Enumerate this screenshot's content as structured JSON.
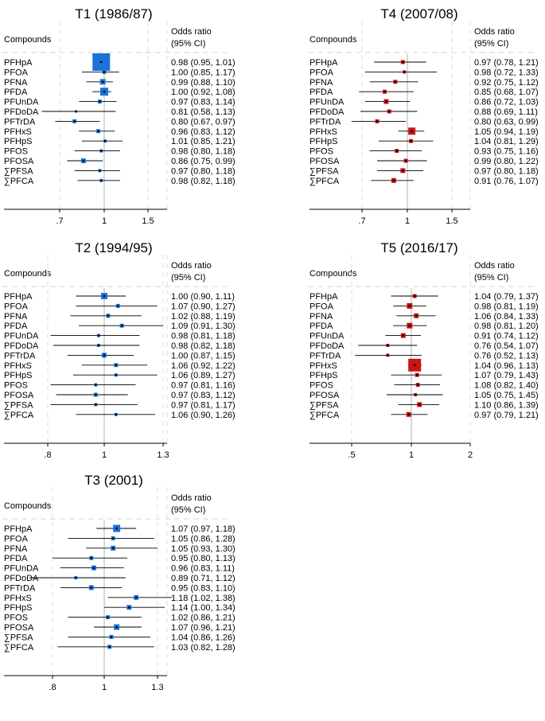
{
  "colors": {
    "blue": "#1a73d9",
    "red": "#c91414",
    "line": "#000000",
    "grid": "#dcdcdc",
    "text": "#000000"
  },
  "chart_data": [
    {
      "type": "forest",
      "title": "T1 (1986/87)",
      "color": "#1a73d9",
      "header": {
        "col1": "Compounds",
        "col2a": "Odds ratio",
        "col2b": "(95% CI)"
      },
      "xticks": [
        0.7,
        1,
        1.5
      ],
      "xtick_labels": [
        ".7",
        "1",
        "1.5"
      ],
      "xlim": [
        0.58,
        1.5
      ],
      "rows": [
        {
          "label": "PFHpA",
          "or": 0.98,
          "lo": 0.95,
          "hi": 1.01,
          "w": 22,
          "ci_text": "0.98 (0.95, 1.01)"
        },
        {
          "label": "PFOA",
          "or": 1.0,
          "lo": 0.85,
          "hi": 1.17,
          "w": 5,
          "ci_text": "1.00 (0.85, 1.17)"
        },
        {
          "label": "PFNA",
          "or": 0.99,
          "lo": 0.88,
          "hi": 1.1,
          "w": 7,
          "ci_text": "0.99 (0.88, 1.10)"
        },
        {
          "label": "PFDA",
          "or": 1.0,
          "lo": 0.92,
          "hi": 1.08,
          "w": 10,
          "ci_text": "1.00 (0.92, 1.08)"
        },
        {
          "label": "PFUnDA",
          "or": 0.97,
          "lo": 0.83,
          "hi": 1.14,
          "w": 5,
          "ci_text": "0.97 (0.83, 1.14)"
        },
        {
          "label": "PFDoDA",
          "or": 0.81,
          "lo": 0.58,
          "hi": 1.13,
          "w": 3,
          "ci_text": "0.81 (0.58, 1.13)"
        },
        {
          "label": "PFTrDA",
          "or": 0.8,
          "lo": 0.67,
          "hi": 0.97,
          "w": 5,
          "ci_text": "0.80 (0.67, 0.97)"
        },
        {
          "label": "PFHxS",
          "or": 0.96,
          "lo": 0.83,
          "hi": 1.12,
          "w": 5,
          "ci_text": "0.96 (0.83, 1.12)"
        },
        {
          "label": "PFHpS",
          "or": 1.01,
          "lo": 0.85,
          "hi": 1.21,
          "w": 4,
          "ci_text": "1.01 (0.85, 1.21)"
        },
        {
          "label": "PFOS",
          "or": 0.98,
          "lo": 0.8,
          "hi": 1.18,
          "w": 4,
          "ci_text": "0.98 (0.80, 1.18)"
        },
        {
          "label": "PFOSA",
          "or": 0.86,
          "lo": 0.75,
          "hi": 0.99,
          "w": 6,
          "ci_text": "0.86 (0.75, 0.99)"
        },
        {
          "label": "∑PFSA",
          "or": 0.97,
          "lo": 0.8,
          "hi": 1.18,
          "w": 4,
          "ci_text": "0.97 (0.80, 1.18)"
        },
        {
          "label": "∑PFCA",
          "or": 0.98,
          "lo": 0.82,
          "hi": 1.18,
          "w": 4,
          "ci_text": "0.98 (0.82, 1.18)"
        }
      ]
    },
    {
      "type": "forest",
      "title": "T4 (2007/08)",
      "color": "#c91414",
      "header": {
        "col1": "Compounds",
        "col2a": "Odds ratio",
        "col2b": "(95% CI)"
      },
      "xticks": [
        0.7,
        1,
        1.5
      ],
      "xtick_labels": [
        ".7",
        "1",
        "1.5"
      ],
      "xlim": [
        0.58,
        1.5
      ],
      "rows": [
        {
          "label": "PFHpA",
          "or": 0.97,
          "lo": 0.78,
          "hi": 1.21,
          "w": 5,
          "ci_text": "0.97 (0.78, 1.21)"
        },
        {
          "label": "PFOA",
          "or": 0.98,
          "lo": 0.72,
          "hi": 1.33,
          "w": 4,
          "ci_text": "0.98 (0.72, 1.33)"
        },
        {
          "label": "PFNA",
          "or": 0.92,
          "lo": 0.75,
          "hi": 1.12,
          "w": 5,
          "ci_text": "0.92 (0.75, 1.12)"
        },
        {
          "label": "PFDA",
          "or": 0.85,
          "lo": 0.68,
          "hi": 1.07,
          "w": 5,
          "ci_text": "0.85 (0.68, 1.07)"
        },
        {
          "label": "PFUnDA",
          "or": 0.86,
          "lo": 0.72,
          "hi": 1.03,
          "w": 6,
          "ci_text": "0.86 (0.72, 1.03)"
        },
        {
          "label": "PFDoDA",
          "or": 0.88,
          "lo": 0.69,
          "hi": 1.11,
          "w": 5,
          "ci_text": "0.88 (0.69, 1.11)"
        },
        {
          "label": "PFTrDA",
          "or": 0.8,
          "lo": 0.63,
          "hi": 0.99,
          "w": 5,
          "ci_text": "0.80 (0.63, 0.99)"
        },
        {
          "label": "PFHxS",
          "or": 1.05,
          "lo": 0.94,
          "hi": 1.19,
          "w": 9,
          "ci_text": "1.05 (0.94, 1.19)"
        },
        {
          "label": "PFHpS",
          "or": 1.04,
          "lo": 0.81,
          "hi": 1.29,
          "w": 5,
          "ci_text": "1.04 (0.81, 1.29)"
        },
        {
          "label": "PFOS",
          "or": 0.93,
          "lo": 0.75,
          "hi": 1.16,
          "w": 5,
          "ci_text": "0.93 (0.75, 1.16)"
        },
        {
          "label": "PFOSA",
          "or": 0.99,
          "lo": 0.8,
          "hi": 1.22,
          "w": 5,
          "ci_text": "0.99 (0.80, 1.22)"
        },
        {
          "label": "∑PFSA",
          "or": 0.97,
          "lo": 0.8,
          "hi": 1.18,
          "w": 6,
          "ci_text": "0.97 (0.80, 1.18)"
        },
        {
          "label": "∑PFCA",
          "or": 0.91,
          "lo": 0.76,
          "hi": 1.07,
          "w": 6,
          "ci_text": "0.91 (0.76, 1.07)"
        }
      ]
    },
    {
      "type": "forest",
      "title": "T2 (1994/95)",
      "color": "#1a73d9",
      "header": {
        "col1": "Compounds",
        "col2a": "Odds ratio",
        "col2b": "(95% CI)"
      },
      "xticks": [
        0.8,
        1,
        1.3
      ],
      "xtick_labels": [
        ".8",
        "1",
        "1.3"
      ],
      "xlim": [
        0.76,
        1.3
      ],
      "rows": [
        {
          "label": "PFHpA",
          "or": 1.0,
          "lo": 0.9,
          "hi": 1.11,
          "w": 8,
          "ci_text": "1.00 (0.90, 1.11)"
        },
        {
          "label": "PFOA",
          "or": 1.07,
          "lo": 0.9,
          "hi": 1.27,
          "w": 5,
          "ci_text": "1.07 (0.90, 1.27)"
        },
        {
          "label": "PFNA",
          "or": 1.02,
          "lo": 0.88,
          "hi": 1.19,
          "w": 5,
          "ci_text": "1.02 (0.88, 1.19)"
        },
        {
          "label": "PFDA",
          "or": 1.09,
          "lo": 0.91,
          "hi": 1.3,
          "w": 5,
          "ci_text": "1.09 (0.91, 1.30)"
        },
        {
          "label": "PFUnDA",
          "or": 0.98,
          "lo": 0.81,
          "hi": 1.18,
          "w": 4,
          "ci_text": "0.98 (0.81, 1.18)"
        },
        {
          "label": "PFDoDA",
          "or": 0.98,
          "lo": 0.82,
          "hi": 1.18,
          "w": 4,
          "ci_text": "0.98 (0.82, 1.18)"
        },
        {
          "label": "PFTrDA",
          "or": 1.0,
          "lo": 0.87,
          "hi": 1.15,
          "w": 6,
          "ci_text": "1.00 (0.87, 1.15)"
        },
        {
          "label": "PFHxS",
          "or": 1.06,
          "lo": 0.92,
          "hi": 1.22,
          "w": 5,
          "ci_text": "1.06 (0.92, 1.22)"
        },
        {
          "label": "PFHpS",
          "or": 1.06,
          "lo": 0.89,
          "hi": 1.27,
          "w": 4,
          "ci_text": "1.06 (0.89, 1.27)"
        },
        {
          "label": "PFOS",
          "or": 0.97,
          "lo": 0.81,
          "hi": 1.16,
          "w": 4,
          "ci_text": "0.97 (0.81, 1.16)"
        },
        {
          "label": "PFOSA",
          "or": 0.97,
          "lo": 0.83,
          "hi": 1.12,
          "w": 5,
          "ci_text": "0.97 (0.83, 1.12)"
        },
        {
          "label": "∑PFSA",
          "or": 0.97,
          "lo": 0.81,
          "hi": 1.17,
          "w": 4,
          "ci_text": "0.97 (0.81, 1.17)"
        },
        {
          "label": "∑PFCA",
          "or": 1.06,
          "lo": 0.9,
          "hi": 1.26,
          "w": 4,
          "ci_text": "1.06 (0.90, 1.26)"
        }
      ]
    },
    {
      "type": "forest",
      "title": "T5 (2016/17)",
      "color": "#c91414",
      "header": {
        "col1": "Compounds",
        "col2a": "Odds ratio",
        "col2b": "(95% CI)"
      },
      "xticks": [
        0.5,
        1,
        2
      ],
      "xtick_labels": [
        ".5",
        "1",
        "2"
      ],
      "xlim": [
        0.5,
        2
      ],
      "log": true,
      "rows": [
        {
          "label": "PFHpA",
          "or": 1.04,
          "lo": 0.79,
          "hi": 1.37,
          "w": 5,
          "ci_text": "1.04 (0.79, 1.37)"
        },
        {
          "label": "PFOA",
          "or": 0.98,
          "lo": 0.81,
          "hi": 1.19,
          "w": 7,
          "ci_text": "0.98 (0.81, 1.19)"
        },
        {
          "label": "PFNA",
          "or": 1.06,
          "lo": 0.84,
          "hi": 1.33,
          "w": 6,
          "ci_text": "1.06 (0.84, 1.33)"
        },
        {
          "label": "PFDA",
          "or": 0.98,
          "lo": 0.81,
          "hi": 1.2,
          "w": 7,
          "ci_text": "0.98 (0.81, 1.20)"
        },
        {
          "label": "PFUnDA",
          "or": 0.91,
          "lo": 0.74,
          "hi": 1.12,
          "w": 6,
          "ci_text": "0.91 (0.74, 1.12)"
        },
        {
          "label": "PFDoDA",
          "or": 0.76,
          "lo": 0.54,
          "hi": 1.07,
          "w": 4,
          "ci_text": "0.76 (0.54, 1.07)"
        },
        {
          "label": "PFTrDA",
          "or": 0.76,
          "lo": 0.52,
          "hi": 1.13,
          "w": 4,
          "ci_text": "0.76 (0.52, 1.13)"
        },
        {
          "label": "PFHxS",
          "or": 1.04,
          "lo": 0.96,
          "hi": 1.13,
          "w": 16,
          "ci_text": "1.04 (0.96, 1.13)"
        },
        {
          "label": "PFHpS",
          "or": 1.07,
          "lo": 0.79,
          "hi": 1.43,
          "w": 5,
          "ci_text": "1.07 (0.79, 1.43)"
        },
        {
          "label": "PFOS",
          "or": 1.08,
          "lo": 0.82,
          "hi": 1.4,
          "w": 5,
          "ci_text": "1.08 (0.82, 1.40)"
        },
        {
          "label": "PFOSA",
          "or": 1.05,
          "lo": 0.75,
          "hi": 1.45,
          "w": 4,
          "ci_text": "1.05 (0.75, 1.45)"
        },
        {
          "label": "∑PFSA",
          "or": 1.1,
          "lo": 0.86,
          "hi": 1.39,
          "w": 6,
          "ci_text": "1.10 (0.86, 1.39)"
        },
        {
          "label": "∑PFCA",
          "or": 0.97,
          "lo": 0.79,
          "hi": 1.21,
          "w": 6,
          "ci_text": "0.97 (0.79, 1.21)"
        }
      ]
    },
    {
      "type": "forest",
      "title": "T3 (2001)",
      "color": "#1a73d9",
      "header": {
        "col1": "Compounds",
        "col2a": "Odds ratio",
        "col2b": "(95% CI)"
      },
      "xticks": [
        0.8,
        1,
        1.3
      ],
      "xtick_labels": [
        ".8",
        "1",
        "1.3"
      ],
      "xlim": [
        0.72,
        1.3
      ],
      "rows": [
        {
          "label": "PFHpA",
          "or": 1.07,
          "lo": 0.97,
          "hi": 1.18,
          "w": 9,
          "ci_text": "1.07 (0.97, 1.18)"
        },
        {
          "label": "PFOA",
          "or": 1.05,
          "lo": 0.86,
          "hi": 1.28,
          "w": 5,
          "ci_text": "1.05 (0.86, 1.28)"
        },
        {
          "label": "PFNA",
          "or": 1.05,
          "lo": 0.93,
          "hi": 1.3,
          "w": 6,
          "ci_text": "1.05 (0.93, 1.30)"
        },
        {
          "label": "PFDA",
          "or": 0.95,
          "lo": 0.8,
          "hi": 1.13,
          "w": 5,
          "ci_text": "0.95 (0.80, 1.13)"
        },
        {
          "label": "PFUnDA",
          "or": 0.96,
          "lo": 0.83,
          "hi": 1.11,
          "w": 6,
          "ci_text": "0.96 (0.83, 1.11)"
        },
        {
          "label": "PFDoDA",
          "or": 0.89,
          "lo": 0.71,
          "hi": 1.12,
          "w": 4,
          "ci_text": "0.89 (0.71, 1.12)"
        },
        {
          "label": "PFTrDA",
          "or": 0.95,
          "lo": 0.83,
          "hi": 1.1,
          "w": 6,
          "ci_text": "0.95 (0.83, 1.10)"
        },
        {
          "label": "PFHxS",
          "or": 1.18,
          "lo": 1.02,
          "hi": 1.38,
          "w": 6,
          "ci_text": "1.18 (1.02, 1.38)"
        },
        {
          "label": "PFHpS",
          "or": 1.14,
          "lo": 1.0,
          "hi": 1.34,
          "w": 6,
          "ci_text": "1.14 (1.00, 1.34)"
        },
        {
          "label": "PFOS",
          "or": 1.02,
          "lo": 0.86,
          "hi": 1.21,
          "w": 5,
          "ci_text": "1.02 (0.86, 1.21)"
        },
        {
          "label": "PFOSA",
          "or": 1.07,
          "lo": 0.96,
          "hi": 1.21,
          "w": 7,
          "ci_text": "1.07 (0.96, 1.21)"
        },
        {
          "label": "∑PFSA",
          "or": 1.04,
          "lo": 0.86,
          "hi": 1.26,
          "w": 5,
          "ci_text": "1.04 (0.86, 1.26)"
        },
        {
          "label": "∑PFCA",
          "or": 1.03,
          "lo": 0.82,
          "hi": 1.28,
          "w": 5,
          "ci_text": "1.03 (0.82, 1.28)"
        }
      ]
    }
  ]
}
